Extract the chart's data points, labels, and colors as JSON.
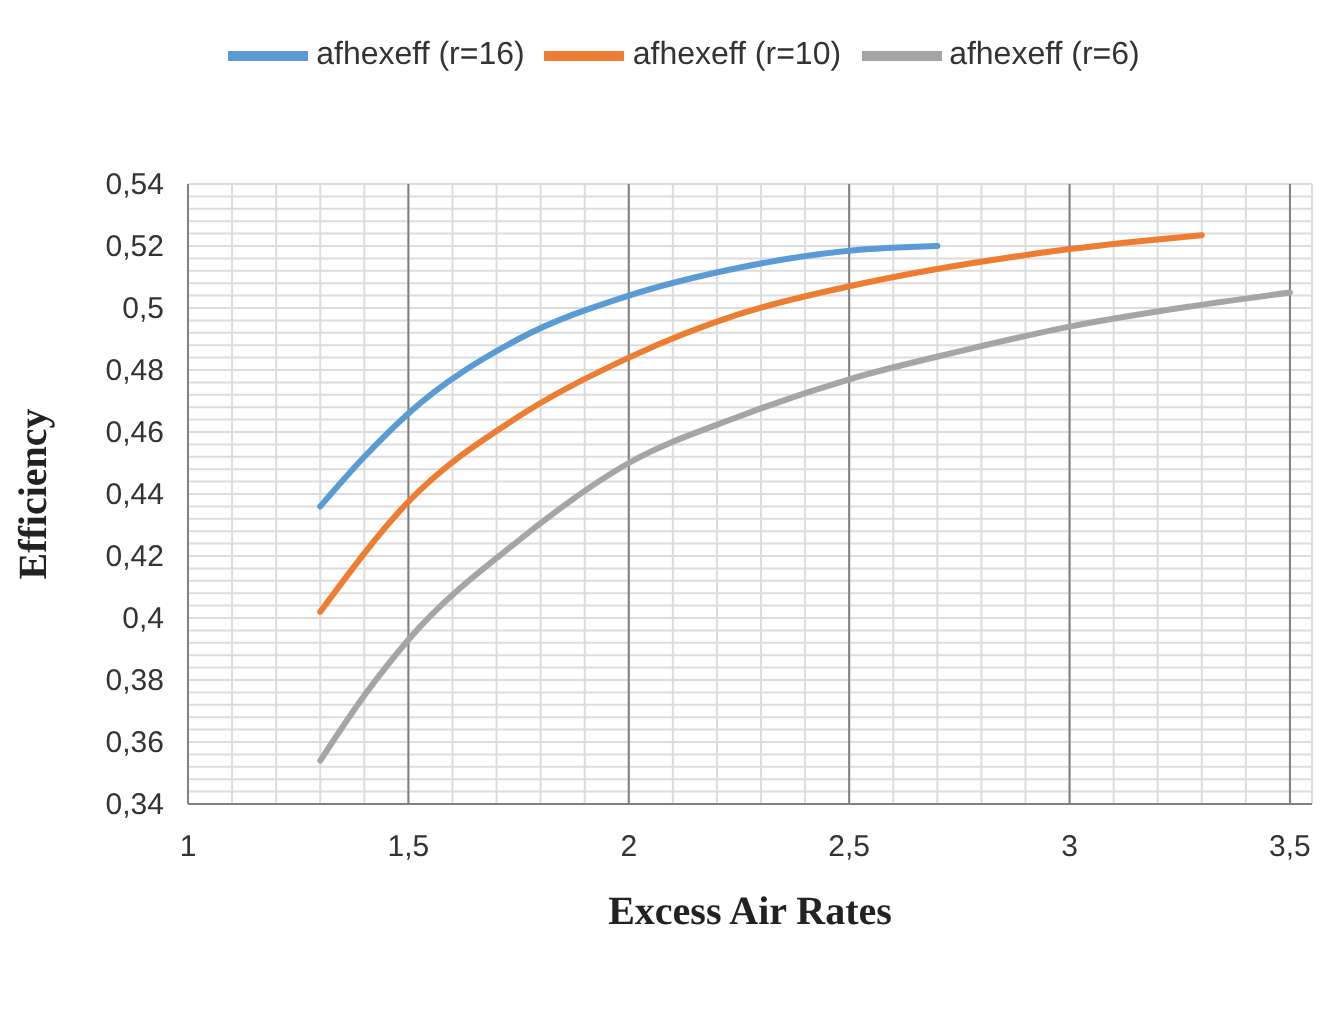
{
  "chart_data": {
    "type": "line",
    "xlabel": "Excess Air Rates",
    "ylabel": "Efficiency",
    "series": [
      {
        "name": "afhexeff (r=16)",
        "color": "#5b9bd5",
        "x": [
          1.3,
          1.4,
          1.5,
          1.75,
          2,
          2.25,
          2.5,
          2.7
        ],
        "values": [
          0.436,
          0.452,
          0.466,
          0.49,
          0.504,
          0.513,
          0.5185,
          0.52
        ]
      },
      {
        "name": "afhexeff (r=10)",
        "color": "#ed7d31",
        "x": [
          1.3,
          1.5,
          1.75,
          2,
          2.25,
          2.5,
          3,
          3.3
        ],
        "values": [
          0.402,
          0.4375,
          0.465,
          0.484,
          0.498,
          0.507,
          0.519,
          0.5235
        ]
      },
      {
        "name": "afhexeff (r=6)",
        "color": "#a5a5a5",
        "x": [
          1.3,
          1.4,
          1.5,
          1.75,
          2,
          2.25,
          2.5,
          2.75,
          3,
          3.25,
          3.5
        ],
        "values": [
          0.354,
          0.375,
          0.393,
          0.425,
          0.45,
          0.465,
          0.477,
          0.486,
          0.494,
          0.5,
          0.505
        ]
      }
    ],
    "xlim": [
      1,
      3.55
    ],
    "xticks": [
      1,
      {
        "value": 1.1,
        "label": null
      },
      {
        "value": 1.2,
        "label": null
      },
      {
        "value": 1.3,
        "label": null
      },
      {
        "value": 1.4,
        "label": null
      },
      {
        "value": 1.5,
        "label": "1,5"
      },
      {
        "value": 1.6,
        "label": null
      },
      {
        "value": 1.7,
        "label": null
      },
      {
        "value": 1.8,
        "label": null
      },
      {
        "value": 1.9,
        "label": null
      },
      2,
      {
        "value": 2.1,
        "label": null
      },
      {
        "value": 2.2,
        "label": null
      },
      {
        "value": 2.3,
        "label": null
      },
      {
        "value": 2.4,
        "label": null
      },
      {
        "value": 2.5,
        "label": "2,5"
      },
      {
        "value": 2.6,
        "label": null
      },
      {
        "value": 2.7,
        "label": null
      },
      {
        "value": 2.8,
        "label": null
      },
      {
        "value": 2.9,
        "label": null
      },
      3,
      {
        "value": 3.1,
        "label": null
      },
      {
        "value": 3.2,
        "label": null
      },
      {
        "value": 3.3,
        "label": null
      },
      {
        "value": 3.4,
        "label": null
      },
      {
        "value": 3.5,
        "label": "3,5"
      }
    ],
    "ylim": [
      0.34,
      0.54
    ],
    "yticks": [
      {
        "value": 0.34,
        "label": "0,34"
      },
      {
        "value": 0.344,
        "label": null
      },
      {
        "value": 0.348,
        "label": null
      },
      {
        "value": 0.352,
        "label": null
      },
      {
        "value": 0.356,
        "label": null
      },
      {
        "value": 0.36,
        "label": "0,36"
      },
      {
        "value": 0.364,
        "label": null
      },
      {
        "value": 0.368,
        "label": null
      },
      {
        "value": 0.372,
        "label": null
      },
      {
        "value": 0.376,
        "label": null
      },
      {
        "value": 0.38,
        "label": "0,38"
      },
      {
        "value": 0.384,
        "label": null
      },
      {
        "value": 0.388,
        "label": null
      },
      {
        "value": 0.392,
        "label": null
      },
      {
        "value": 0.396,
        "label": null
      },
      {
        "value": 0.4,
        "label": "0,4"
      },
      {
        "value": 0.404,
        "label": null
      },
      {
        "value": 0.408,
        "label": null
      },
      {
        "value": 0.412,
        "label": null
      },
      {
        "value": 0.416,
        "label": null
      },
      {
        "value": 0.42,
        "label": "0,42"
      },
      {
        "value": 0.424,
        "label": null
      },
      {
        "value": 0.428,
        "label": null
      },
      {
        "value": 0.432,
        "label": null
      },
      {
        "value": 0.436,
        "label": null
      },
      {
        "value": 0.44,
        "label": "0,44"
      },
      {
        "value": 0.444,
        "label": null
      },
      {
        "value": 0.448,
        "label": null
      },
      {
        "value": 0.452,
        "label": null
      },
      {
        "value": 0.456,
        "label": null
      },
      {
        "value": 0.46,
        "label": "0,46"
      },
      {
        "value": 0.464,
        "label": null
      },
      {
        "value": 0.468,
        "label": null
      },
      {
        "value": 0.472,
        "label": null
      },
      {
        "value": 0.476,
        "label": null
      },
      {
        "value": 0.48,
        "label": "0,48"
      },
      {
        "value": 0.484,
        "label": null
      },
      {
        "value": 0.488,
        "label": null
      },
      {
        "value": 0.492,
        "label": null
      },
      {
        "value": 0.496,
        "label": null
      },
      {
        "value": 0.5,
        "label": "0,5"
      },
      {
        "value": 0.504,
        "label": null
      },
      {
        "value": 0.508,
        "label": null
      },
      {
        "value": 0.512,
        "label": null
      },
      {
        "value": 0.516,
        "label": null
      },
      {
        "value": 0.52,
        "label": "0,52"
      },
      {
        "value": 0.524,
        "label": null
      },
      {
        "value": 0.528,
        "label": null
      },
      {
        "value": 0.532,
        "label": null
      },
      {
        "value": 0.536,
        "label": null
      },
      {
        "value": 0.54,
        "label": "0,54"
      }
    ],
    "grid": true,
    "legend": "top",
    "marker": "none",
    "line_style": "solid"
  }
}
